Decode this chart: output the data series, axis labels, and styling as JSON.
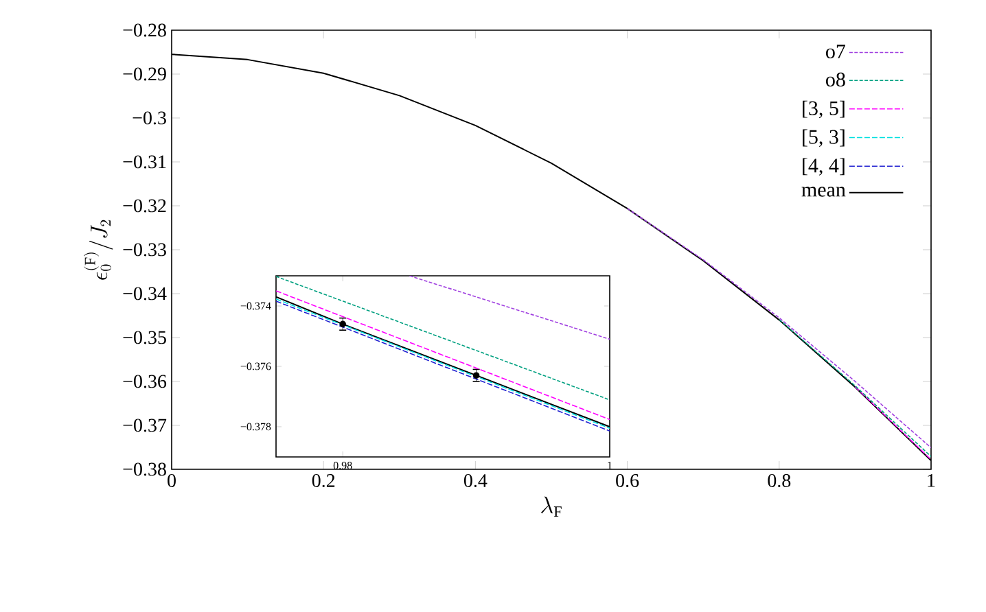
{
  "chart_data": [
    {
      "type": "line",
      "xlabel": "\\lambda_\\mathrm{F}",
      "ylabel": "\\epsilon_0^{(\\mathrm{F})}/J_2",
      "xlim": [
        0,
        1
      ],
      "ylim": [
        -0.38,
        -0.28
      ],
      "legend": "top right",
      "xticks": [
        0,
        0.2,
        0.4,
        0.6,
        0.8,
        1
      ],
      "yticks": [
        {
          "value": -0.38,
          "label": "−0.38"
        },
        {
          "value": -0.37,
          "label": "−0.37"
        },
        {
          "value": -0.36,
          "label": "−0.36"
        },
        {
          "value": -0.35,
          "label": "−0.35"
        },
        {
          "value": -0.34,
          "label": "−0.34"
        },
        {
          "value": -0.33,
          "label": "−0.33"
        },
        {
          "value": -0.32,
          "label": "−0.32"
        },
        {
          "value": -0.31,
          "label": "−0.31"
        },
        {
          "value": -0.3,
          "label": "−0.3"
        },
        {
          "value": -0.29,
          "label": "−0.29"
        },
        {
          "value": -0.28,
          "label": "−0.28"
        }
      ],
      "x": [
        0,
        0.1,
        0.2,
        0.3,
        0.4,
        0.5,
        0.6,
        0.7,
        0.8,
        0.9,
        1
      ],
      "series": [
        {
          "name": "o7",
          "color": "#a040e0",
          "line_style": "dotted",
          "values": [
            null,
            null,
            null,
            null,
            null,
            null,
            -0.3206,
            -0.3323,
            -0.3455,
            -0.36,
            -0.3751
          ]
        },
        {
          "name": "o8",
          "color": "#00a080",
          "line_style": "dotted",
          "values": [
            null,
            null,
            null,
            null,
            null,
            null,
            null,
            null,
            -0.3459,
            -0.361,
            -0.3771
          ]
        },
        {
          "name": "[3, 5]",
          "color": "#ff00ff",
          "line_style": "dashed",
          "values": [
            null,
            null,
            null,
            null,
            null,
            null,
            null,
            null,
            null,
            -0.3612,
            -0.3778
          ]
        },
        {
          "name": "[5, 3]",
          "color": "#00e0e0",
          "line_style": "dashed",
          "values": [
            null,
            null,
            null,
            null,
            null,
            null,
            null,
            null,
            null,
            null,
            null
          ]
        },
        {
          "name": "[4, 4]",
          "color": "#2020d0",
          "line_style": "dashed",
          "values": [
            null,
            null,
            null,
            null,
            null,
            null,
            null,
            null,
            null,
            null,
            null
          ]
        },
        {
          "name": "mean",
          "color": "#000000",
          "line_style": "solid",
          "values": [
            -0.2855,
            -0.2867,
            -0.2898,
            -0.2949,
            -0.3017,
            -0.3103,
            -0.3206,
            -0.3325,
            -0.346,
            -0.3613,
            -0.378
          ]
        }
      ]
    },
    {
      "type": "line",
      "xlim": [
        0.975,
        1
      ],
      "ylim": [
        -0.379,
        -0.373
      ],
      "xticks": [
        0.98,
        1
      ],
      "yticks": [
        {
          "value": -0.378,
          "label": "−0.378"
        },
        {
          "value": -0.376,
          "label": "−0.376"
        },
        {
          "value": -0.374,
          "label": "−0.374"
        }
      ],
      "series": [
        {
          "color": "#a040e0",
          "line_style": "dotted",
          "x": [
            0.985,
            1
          ],
          "values": [
            -0.373,
            -0.3751
          ]
        },
        {
          "color": "#00a080",
          "line_style": "dotted",
          "x": [
            0.975,
            1
          ],
          "values": [
            -0.37302,
            -0.37711
          ]
        },
        {
          "color": "#ff00ff",
          "line_style": "dashed",
          "x": [
            0.975,
            1
          ],
          "values": [
            -0.3735,
            -0.37776
          ]
        },
        {
          "color": "#00e0e0",
          "line_style": "dashed",
          "x": [
            0.975,
            1
          ],
          "values": [
            -0.37377,
            -0.37805
          ]
        },
        {
          "color": "#2020d0",
          "line_style": "dashed",
          "x": [
            0.975,
            1
          ],
          "values": [
            -0.37384,
            -0.37814
          ]
        },
        {
          "color": "#000000",
          "line_style": "solid",
          "x": [
            0.975,
            0.98,
            0.99,
            1
          ],
          "values": [
            -0.3737,
            -0.3746,
            -0.3763,
            -0.378
          ],
          "errors": [
            null,
            0.0002,
            0.0002,
            null
          ]
        }
      ]
    }
  ]
}
